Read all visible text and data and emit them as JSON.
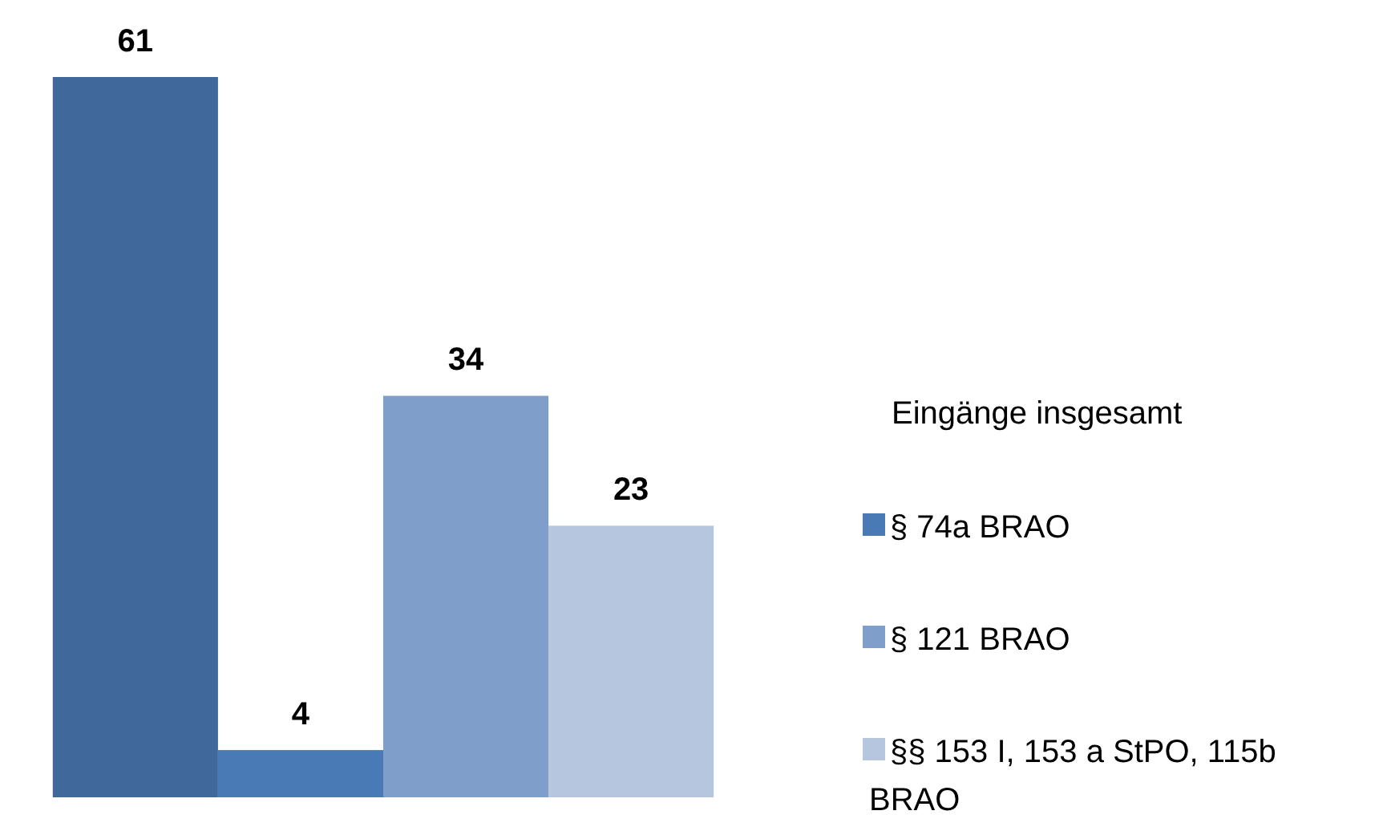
{
  "chart_data": {
    "type": "bar",
    "categories": [
      null
    ],
    "legend_title": "Eingänge insgesamt",
    "legend": "right",
    "data_labels": true,
    "series": [
      {
        "color": "#41689b",
        "values": [
          61
        ]
      },
      {
        "name": "§ 74a BRAO",
        "color": "#4a7ab5",
        "values": [
          4
        ]
      },
      {
        "name": "§ 121 BRAO",
        "color": "#7f9fca",
        "values": [
          34
        ]
      },
      {
        "name": "§§ 153 I, 153 a StPO, 115b BRAO",
        "color": "#b7c6df",
        "values": [
          23
        ]
      }
    ]
  }
}
